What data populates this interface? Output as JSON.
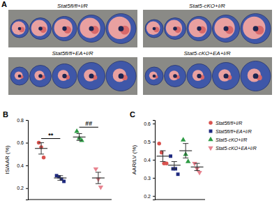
{
  "panel_a": {
    "label": "A",
    "captions": [
      "Stat5fl/fl+I/R",
      "Stat5-cKO+I/R",
      "Stat5fl/fl+EA+I/R",
      "Stat5-cKO+EA+I/R"
    ]
  },
  "chart_data": [
    {
      "type": "scatter",
      "title": "B",
      "ylabel": "IS/AAR (%)",
      "ylim": [
        0.1,
        0.8
      ],
      "yticks": [
        0.2,
        0.4,
        0.6,
        0.8
      ],
      "tick_labels": "y",
      "series": [
        {
          "name": "Stat5fl/fl+I/R",
          "color": "#d9534f",
          "marker": "circle",
          "values": [
            0.6,
            0.56,
            0.47
          ],
          "mean": 0.55,
          "sem": 0.05
        },
        {
          "name": "Stat5fl/fl+EA+I/R",
          "color": "#1f2a80",
          "marker": "square",
          "values": [
            0.31,
            0.3,
            0.28,
            0.26
          ],
          "mean": 0.29,
          "sem": 0.02
        },
        {
          "name": "Stat5-cKO+I/R",
          "color": "#2e9b45",
          "marker": "triangle",
          "values": [
            0.7,
            0.64,
            0.62
          ],
          "mean": 0.65,
          "sem": 0.03
        },
        {
          "name": "Stat5-cKO+EA+I/R",
          "color": "#e8838f",
          "marker": "triangle-down",
          "values": [
            0.37,
            0.28,
            0.21
          ],
          "mean": 0.29,
          "sem": 0.05
        }
      ],
      "annotations": [
        {
          "text": "**",
          "between": [
            0,
            1
          ]
        },
        {
          "text": "##",
          "between": [
            2,
            3
          ]
        }
      ]
    },
    {
      "type": "scatter",
      "title": "C",
      "ylabel": "AAR/LV (%)",
      "ylim": [
        0.18,
        0.62
      ],
      "yticks": [
        0.2,
        0.3,
        0.4,
        0.5,
        0.6
      ],
      "tick_labels": "y",
      "legend": "right",
      "series": [
        {
          "name": "Stat5fl/fl+I/R",
          "color": "#d9534f",
          "marker": "circle",
          "values": [
            0.49,
            0.44,
            0.38,
            0.38
          ],
          "mean": 0.42,
          "sem": 0.03
        },
        {
          "name": "Stat5fl/fl+EA+I/R",
          "color": "#1f2a80",
          "marker": "square",
          "values": [
            0.42,
            0.35,
            0.35,
            0.32
          ],
          "mean": 0.37,
          "sem": 0.02
        },
        {
          "name": "Stat5-cKO+I/R",
          "color": "#2e9b45",
          "marker": "triangle",
          "values": [
            0.51,
            0.43,
            0.39
          ],
          "mean": 0.45,
          "sem": 0.04
        },
        {
          "name": "Stat5-cKO+EA+I/R",
          "color": "#e8838f",
          "marker": "triangle-down",
          "values": [
            0.38,
            0.35,
            0.33
          ],
          "mean": 0.36,
          "sem": 0.02
        }
      ]
    }
  ]
}
